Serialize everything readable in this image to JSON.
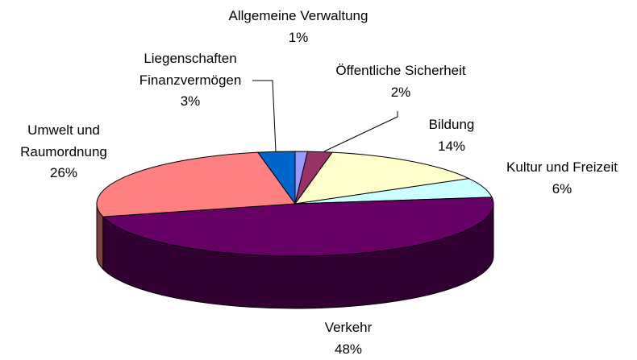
{
  "chart_data": {
    "type": "pie",
    "categories": [
      "Allgemeine Verwaltung",
      "Öffentliche Sicherheit",
      "Bildung",
      "Kultur und Freizeit",
      "Verkehr",
      "Umwelt und Raumordnung",
      "Liegenschaften Finanzvermögen"
    ],
    "values": [
      1,
      2,
      14,
      6,
      48,
      26,
      3
    ],
    "value_labels": [
      "1%",
      "2%",
      "14%",
      "6%",
      "48%",
      "26%",
      "3%"
    ],
    "colors": [
      "#9999ff",
      "#993366",
      "#ffffcc",
      "#ccffff",
      "#660066",
      "#ff8080",
      "#0066cc"
    ]
  }
}
